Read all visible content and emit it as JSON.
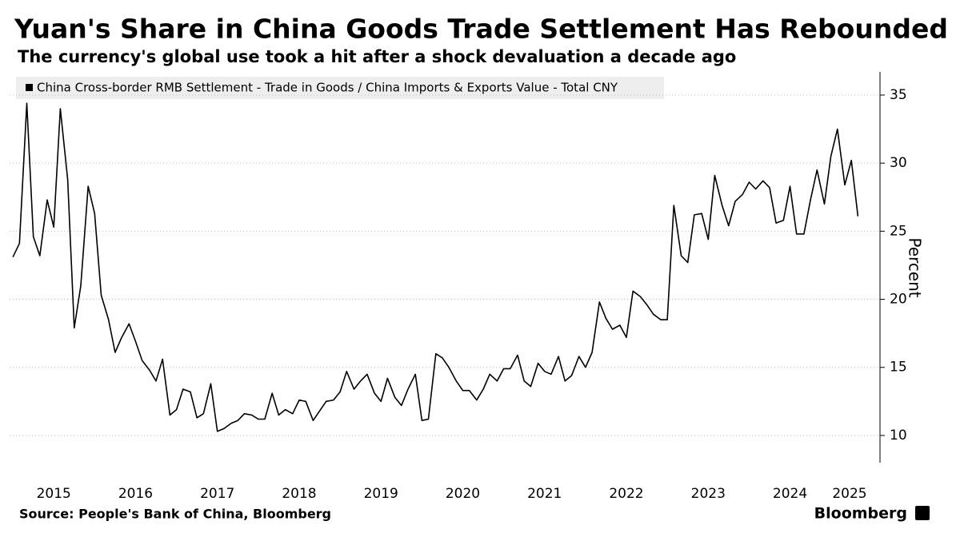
{
  "chart_data": {
    "type": "line",
    "title": "Yuan's Share in China Goods Trade Settlement Has Rebounded",
    "subtitle": "The currency's global use took a hit after a shock devaluation a decade ago",
    "y_label": "Percent",
    "source": "Source: People's Bank of China, Bloomberg",
    "brand": "Bloomberg",
    "series": [
      {
        "name": "China Cross-border RMB Settlement - Trade in Goods / China Imports & Exports Value - Total CNY",
        "color": "#000000",
        "values": [
          23.1,
          24.1,
          34.4,
          24.6,
          23.2,
          27.3,
          25.3,
          34.0,
          28.8,
          17.9,
          21.0,
          28.3,
          26.3,
          20.3,
          18.5,
          16.1,
          17.2,
          18.2,
          16.9,
          15.5,
          14.8,
          14.0,
          15.6,
          11.5,
          11.9,
          13.4,
          13.2,
          11.3,
          11.6,
          13.8,
          10.3,
          10.5,
          10.9,
          11.1,
          11.6,
          11.5,
          11.2,
          11.2,
          13.1,
          11.5,
          11.9,
          11.6,
          12.6,
          12.5,
          11.1,
          11.8,
          12.5,
          12.6,
          13.2,
          14.7,
          13.4,
          14.0,
          14.5,
          13.1,
          12.5,
          14.2,
          12.8,
          12.2,
          13.4,
          14.5,
          11.1,
          11.2,
          16.0,
          15.7,
          15.0,
          14.0,
          13.3,
          13.3,
          12.6,
          13.4,
          14.5,
          14.0,
          14.9,
          14.9,
          15.9,
          14.0,
          13.6,
          15.3,
          14.7,
          14.5,
          15.8,
          14.0,
          14.4,
          15.8,
          15.0,
          16.1,
          19.8,
          18.6,
          17.8,
          18.1,
          17.2,
          20.6,
          20.2,
          19.6,
          18.9,
          18.5,
          18.5,
          26.9,
          23.2,
          22.7,
          26.2,
          26.3,
          24.4,
          29.1,
          26.9,
          25.4,
          27.2,
          27.7,
          28.6,
          28.1,
          28.7,
          28.2,
          25.6,
          25.8,
          28.3,
          24.8,
          24.8,
          27.3,
          29.5,
          27.0,
          30.5,
          32.5,
          28.4,
          30.2,
          26.1
        ]
      }
    ],
    "x": [
      2015,
      2015.08,
      2015.17,
      2015.25,
      2015.33,
      2015.42,
      2015.5,
      2015.58,
      2015.67,
      2015.75,
      2015.83,
      2015.92,
      2016,
      2016.08,
      2016.17,
      2016.25,
      2016.33,
      2016.42,
      2016.5,
      2016.58,
      2016.67,
      2016.75,
      2016.83,
      2016.92,
      2017,
      2017.08,
      2017.17,
      2017.25,
      2017.33,
      2017.42,
      2017.5,
      2017.58,
      2017.67,
      2017.75,
      2017.83,
      2017.92,
      2018,
      2018.08,
      2018.17,
      2018.25,
      2018.33,
      2018.42,
      2018.5,
      2018.58,
      2018.67,
      2018.75,
      2018.83,
      2018.92,
      2019,
      2019.08,
      2019.17,
      2019.25,
      2019.33,
      2019.42,
      2019.5,
      2019.58,
      2019.67,
      2019.75,
      2019.83,
      2019.92,
      2020,
      2020.08,
      2020.17,
      2020.25,
      2020.33,
      2020.42,
      2020.5,
      2020.58,
      2020.67,
      2020.75,
      2020.83,
      2020.92,
      2021,
      2021.08,
      2021.17,
      2021.25,
      2021.33,
      2021.42,
      2021.5,
      2021.58,
      2021.67,
      2021.75,
      2021.83,
      2021.92,
      2022,
      2022.08,
      2022.17,
      2022.25,
      2022.33,
      2022.42,
      2022.5,
      2022.58,
      2022.67,
      2022.75,
      2022.83,
      2022.92,
      2023,
      2023.08,
      2023.17,
      2023.25,
      2023.33,
      2023.42,
      2023.5,
      2023.58,
      2023.67,
      2023.75,
      2023.83,
      2023.92,
      2024,
      2024.08,
      2024.17,
      2024.25,
      2024.33,
      2024.42,
      2024.5,
      2024.58,
      2024.67,
      2024.75,
      2024.83,
      2024.92,
      2025,
      2025.08,
      2025.17,
      2025.25,
      2025.33
    ],
    "xlim": [
      2014.96,
      2025.6
    ],
    "xticks": [
      {
        "value": 2015.5,
        "label": "2015"
      },
      {
        "value": 2016.5,
        "label": "2016"
      },
      {
        "value": 2017.5,
        "label": "2017"
      },
      {
        "value": 2018.5,
        "label": "2018"
      },
      {
        "value": 2019.5,
        "label": "2019"
      },
      {
        "value": 2020.5,
        "label": "2020"
      },
      {
        "value": 2021.5,
        "label": "2021"
      },
      {
        "value": 2022.5,
        "label": "2022"
      },
      {
        "value": 2023.5,
        "label": "2023"
      },
      {
        "value": 2024.5,
        "label": "2024"
      },
      {
        "value": 2025.5,
        "label": "2025"
      }
    ],
    "ylim": [
      8,
      36.7
    ],
    "yticks": [
      10,
      15,
      20,
      25,
      30,
      35
    ],
    "grid": true
  }
}
